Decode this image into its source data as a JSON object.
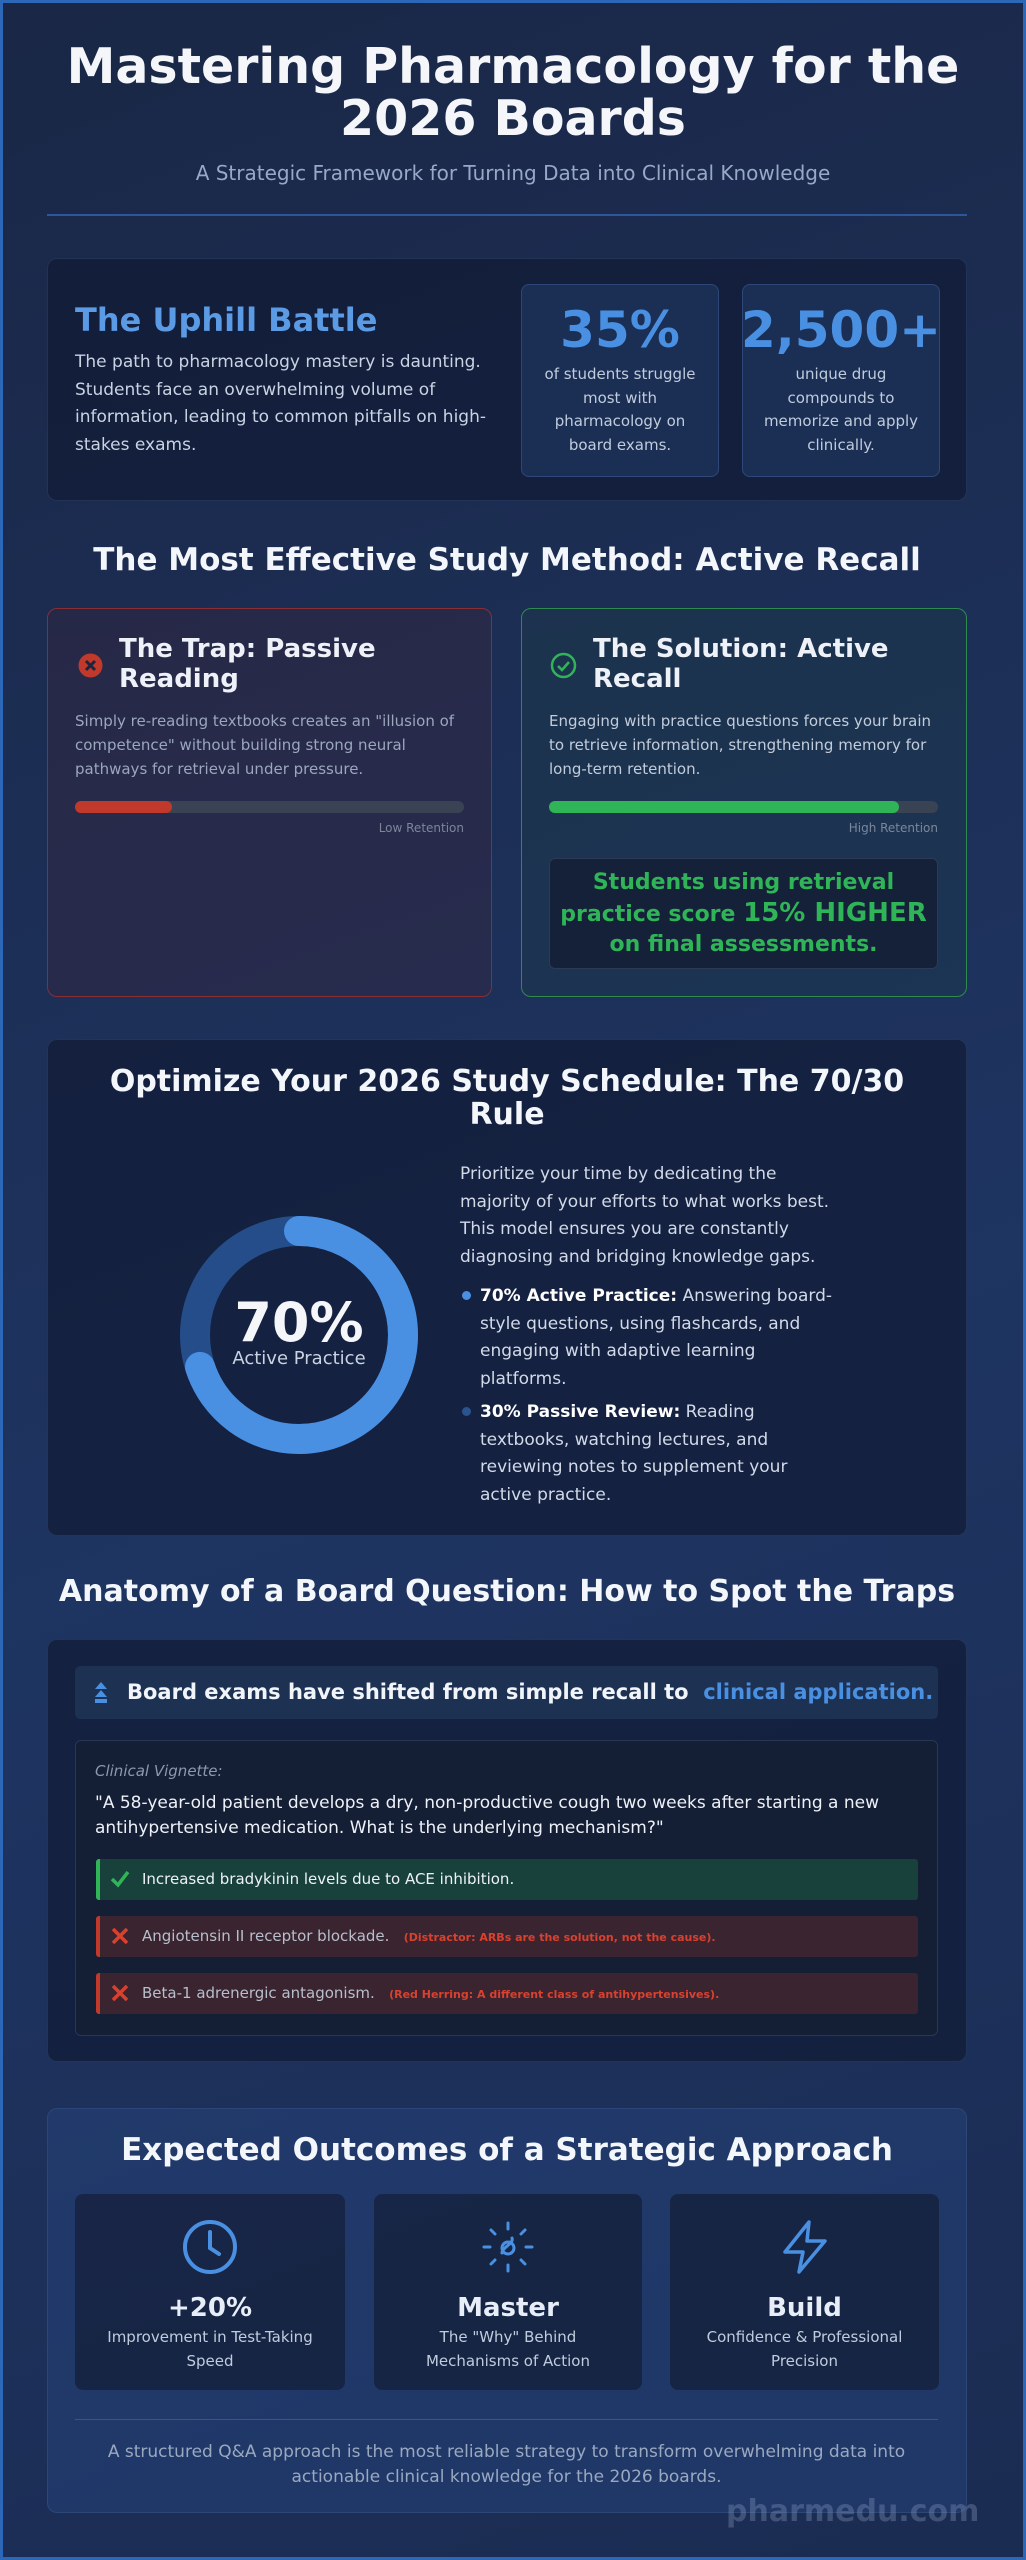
{
  "header": {
    "title": "Mastering Pharmacology for the 2026 Boards",
    "subtitle": "A Strategic Framework for Turning Data into Clinical Knowledge"
  },
  "challenge": {
    "title": "The Uphill Battle",
    "text": "The path to pharmacology mastery is daunting. Students face an overwhelming volume of information, leading to common pitfalls on high-stakes exams.",
    "stats": [
      {
        "value": "35%",
        "label": "of students struggle most with pharmacology on board exams."
      },
      {
        "value": "2,500+",
        "label": "unique drug compounds to memorize and apply clinically."
      }
    ]
  },
  "method": {
    "title": "The Most Effective Study Method: Active Recall",
    "trap": {
      "title": "The Trap: Passive Reading",
      "text": "Simply re-reading textbooks creates an \"illusion of competence\" without building strong neural pathways for retrieval under pressure.",
      "retention": 25,
      "retention_label": "Low Retention"
    },
    "solution": {
      "title": "The Solution: Active Recall",
      "text": "Engaging with practice questions forces your brain to retrieve information, strengthening memory for long-term retention.",
      "retention": 90,
      "retention_label": "High Retention",
      "callout": {
        "before": "Students using retrieval practice score",
        "highlight": "15% HIGHER",
        "after": "on final assessments."
      }
    }
  },
  "schedule": {
    "title": "Optimize Your 2026 Study Schedule: The 70/30 Rule",
    "donut": {
      "value": 70,
      "label": "70%",
      "caption": "Active Practice"
    },
    "intro": "Prioritize your time by dedicating the majority of your efforts to what works best. This model ensures you are constantly diagnosing and bridging knowledge gaps.",
    "bullets": [
      {
        "term": "70% Active Practice:",
        "text": "Answering board-style questions, using flashcards, and engaging with adaptive learning platforms."
      },
      {
        "term": "30% Passive Review:",
        "text": "Reading textbooks, watching lectures, and reviewing notes to supplement your active practice."
      }
    ]
  },
  "question": {
    "title": "Anatomy of a Board Question: How to Spot the Traps",
    "banner": {
      "text": "Board exams have shifted from simple recall to",
      "highlight": "clinical application."
    },
    "vignette_label": "Clinical Vignette:",
    "vignette": "\"A 58-year-old patient develops a dry, non-productive cough two weeks after starting a new antihypertensive medication. What is the underlying mechanism?\"",
    "options": [
      {
        "text": "Increased bradykinin levels due to ACE inhibition.",
        "correct": true
      },
      {
        "text": "Angiotensin II receptor blockade.",
        "note": "(Distractor: ARBs are the solution, not the cause).",
        "correct": false
      },
      {
        "text": "Beta-1 adrenergic antagonism.",
        "note": "(Red Herring: A different class of antihypertensives).",
        "correct": false
      }
    ]
  },
  "outcomes": {
    "title": "Expected Outcomes of a Strategic Approach",
    "items": [
      {
        "value": "+20%",
        "text": "Improvement in Test-Taking Speed"
      },
      {
        "value": "Master",
        "text": "The \"Why\" Behind Mechanisms of Action"
      },
      {
        "value": "Build",
        "text": "Confidence & Professional Precision"
      }
    ],
    "footer": "A structured Q&A approach is the most reliable strategy to transform overwhelming data into actionable clinical knowledge for the 2026 boards."
  },
  "watermark": "pharmedu.com"
}
